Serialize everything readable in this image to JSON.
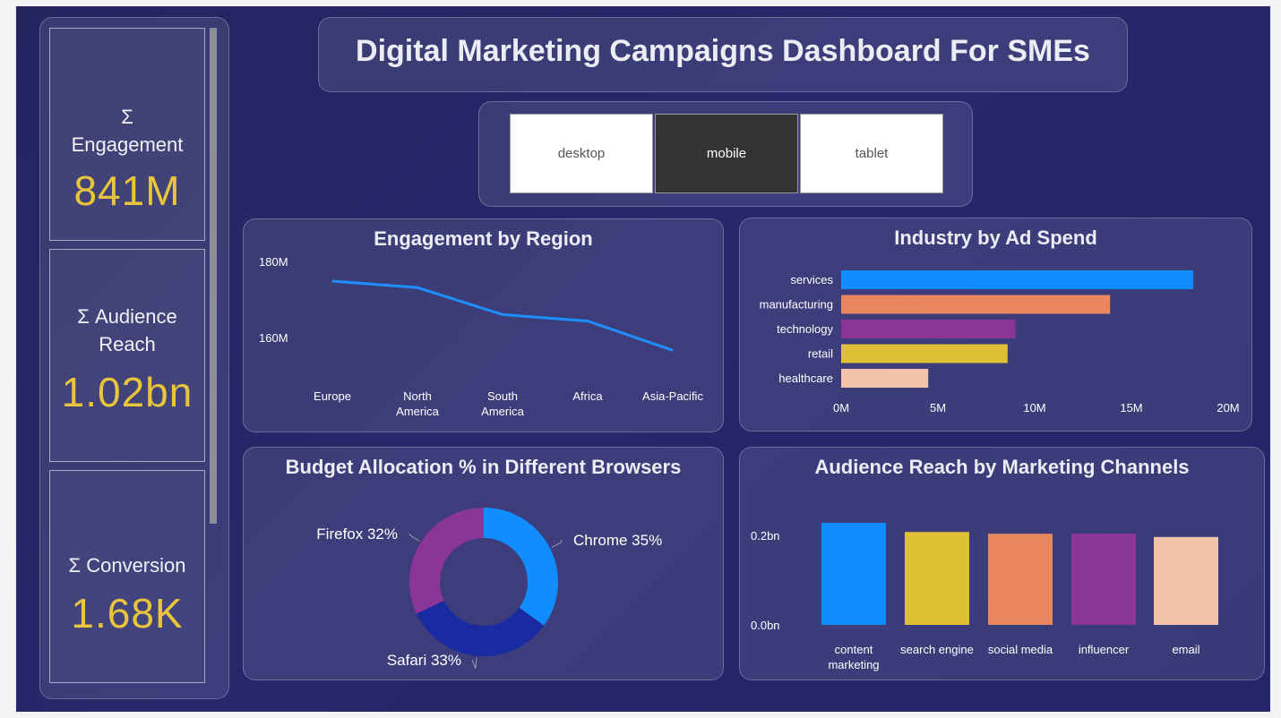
{
  "dashboard": {
    "title": "Digital Marketing Campaigns Dashboard For SMEs"
  },
  "kpis": [
    {
      "label_line1": "Σ",
      "label_line2": "Engagement",
      "value": "841M"
    },
    {
      "label_line1": "Σ Audience",
      "label_line2": "Reach",
      "value": "1.02bn"
    },
    {
      "label_line1": "Σ Conversion",
      "label_line2": "",
      "value": "1.68K"
    }
  ],
  "slicer": {
    "options": [
      "desktop",
      "mobile",
      "tablet"
    ],
    "selected": "mobile"
  },
  "charts": {
    "region": {
      "title": "Engagement by Region",
      "y_ticks": [
        "180M",
        "160M"
      ],
      "categories": [
        [
          "Europe"
        ],
        [
          "North",
          "America"
        ],
        [
          "South",
          "America"
        ],
        [
          "Africa"
        ],
        [
          "Asia-Pacific"
        ]
      ]
    },
    "industry": {
      "title": "Industry by Ad Spend",
      "x_ticks": [
        "0M",
        "5M",
        "10M",
        "15M",
        "20M"
      ]
    },
    "browsers": {
      "title": "Budget Allocation % in Different Browsers"
    },
    "channels": {
      "title": "Audience Reach by Marketing Channels",
      "y_ticks": [
        "0.2bn",
        "0.0bn"
      ],
      "categories": [
        [
          "content",
          "marketing"
        ],
        [
          "search engine"
        ],
        [
          "social media"
        ],
        [
          "influencer"
        ],
        [
          "email"
        ]
      ]
    }
  },
  "chart_data": [
    {
      "type": "line",
      "title": "Engagement by Region",
      "categories": [
        "Europe",
        "North America",
        "South America",
        "Africa",
        "Asia-Pacific"
      ],
      "values": [
        176,
        174.3,
        167.2,
        165.5,
        157.8
      ],
      "unit": "M",
      "ylim": [
        152,
        182
      ],
      "color": "#1f8fff"
    },
    {
      "type": "bar",
      "orientation": "horizontal",
      "title": "Industry by Ad Spend",
      "categories": [
        "services",
        "manufacturing",
        "technology",
        "retail",
        "healthcare"
      ],
      "values": [
        18.2,
        13.9,
        9.0,
        8.6,
        4.5
      ],
      "unit": "M",
      "xlim": [
        0,
        20
      ],
      "colors": [
        "#118dff",
        "#e8875e",
        "#8c3598",
        "#e0c135",
        "#f4c2ab"
      ]
    },
    {
      "type": "pie",
      "title": "Budget Allocation % in Different Browsers",
      "labels": [
        "Chrome",
        "Safari",
        "Firefox"
      ],
      "values": [
        35,
        33,
        32
      ],
      "colors": [
        "#118dff",
        "#1a2aa0",
        "#8c3598"
      ]
    },
    {
      "type": "bar",
      "title": "Audience Reach by Marketing Channels",
      "categories": [
        "content marketing",
        "search engine",
        "social media",
        "influencer",
        "email"
      ],
      "values": [
        0.224,
        0.204,
        0.2,
        0.2,
        0.193
      ],
      "unit": "bn",
      "ylim": [
        0,
        0.224
      ],
      "colors": [
        "#118dff",
        "#e0c135",
        "#e8875e",
        "#8c3598",
        "#f4c2ab"
      ]
    }
  ]
}
